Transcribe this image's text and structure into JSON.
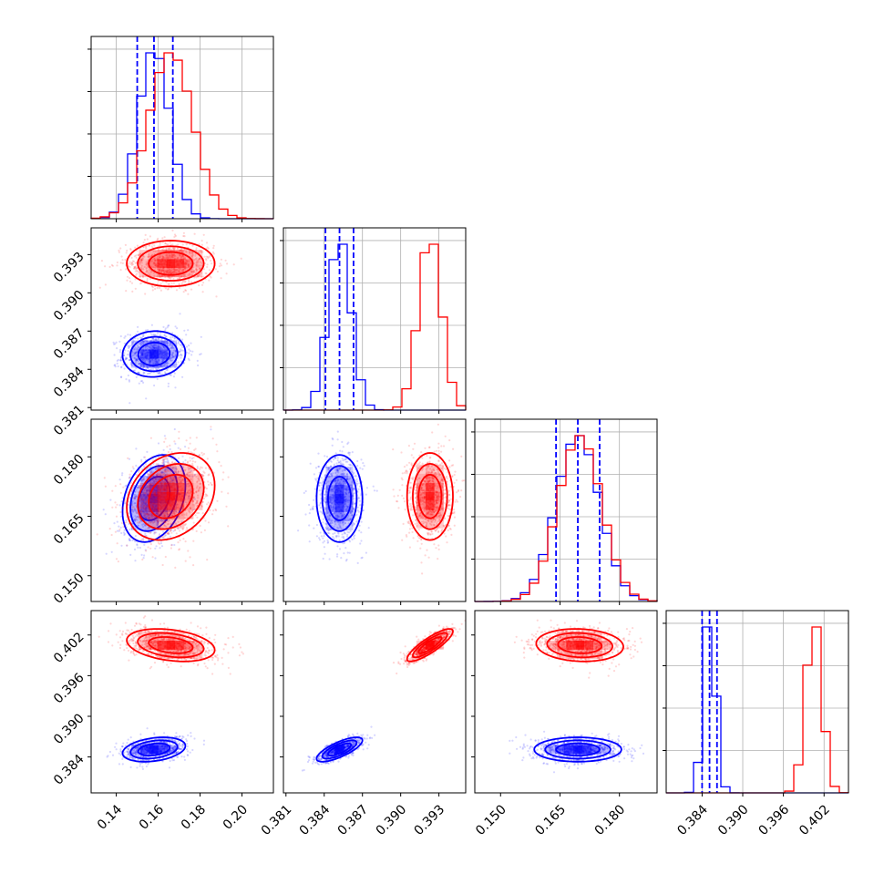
{
  "chart_data": {
    "type": "corner",
    "title": "",
    "parameters": [
      "",
      "",
      "",
      ""
    ],
    "series": [
      {
        "color": "#0000ff",
        "quantile_lines": true,
        "mean": [
          0.158,
          0.3852,
          0.1695,
          0.3851
        ],
        "std": [
          0.0075,
          0.0009,
          0.0055,
          0.0009
        ],
        "corr": [
          [
            1,
            0.05,
            0.3,
            0.3
          ],
          [
            0.05,
            1,
            0,
            0.75
          ],
          [
            0.3,
            0,
            1,
            0
          ],
          [
            0.3,
            0.75,
            0,
            1
          ]
        ],
        "quantiles": [
          [
            0.15,
            0.158,
            0.167
          ],
          [
            0.3841,
            0.3852,
            0.3863
          ],
          [
            0.164,
            0.1695,
            0.175
          ],
          [
            0.384,
            0.3851,
            0.3862
          ]
        ]
      },
      {
        "color": "#ff0000",
        "quantile_lines": false,
        "mean": [
          0.166,
          0.3923,
          0.17,
          0.4005
        ],
        "std": [
          0.0105,
          0.0009,
          0.0055,
          0.0012
        ],
        "corr": [
          [
            1,
            0,
            0.25,
            -0.3
          ],
          [
            0,
            1,
            0,
            0.85
          ],
          [
            0.25,
            0,
            1,
            -0.1
          ],
          [
            -0.3,
            0.85,
            -0.1,
            1
          ]
        ]
      }
    ],
    "ranges": [
      [
        0.128,
        0.215
      ],
      [
        0.3808,
        0.3951
      ],
      [
        0.1435,
        0.1895
      ],
      [
        0.3787,
        0.4056
      ]
    ],
    "ticks": [
      {
        "values": [
          0.14,
          0.16,
          0.18,
          0.2
        ],
        "labels": [
          "0.14",
          "0.16",
          "0.18",
          "0.20"
        ]
      },
      {
        "values": [
          0.381,
          0.384,
          0.387,
          0.39,
          0.393
        ],
        "labels": [
          "0.381",
          "0.384",
          "0.387",
          "0.390",
          "0.393"
        ]
      },
      {
        "values": [
          0.15,
          0.165,
          0.18
        ],
        "labels": [
          "0.150",
          "0.165",
          "0.180"
        ]
      },
      {
        "values": [
          0.384,
          0.39,
          0.396,
          0.402
        ],
        "labels": [
          "0.384",
          "0.390",
          "0.396",
          "0.402"
        ]
      }
    ],
    "hist_y_ticks": 4,
    "grid": true
  }
}
